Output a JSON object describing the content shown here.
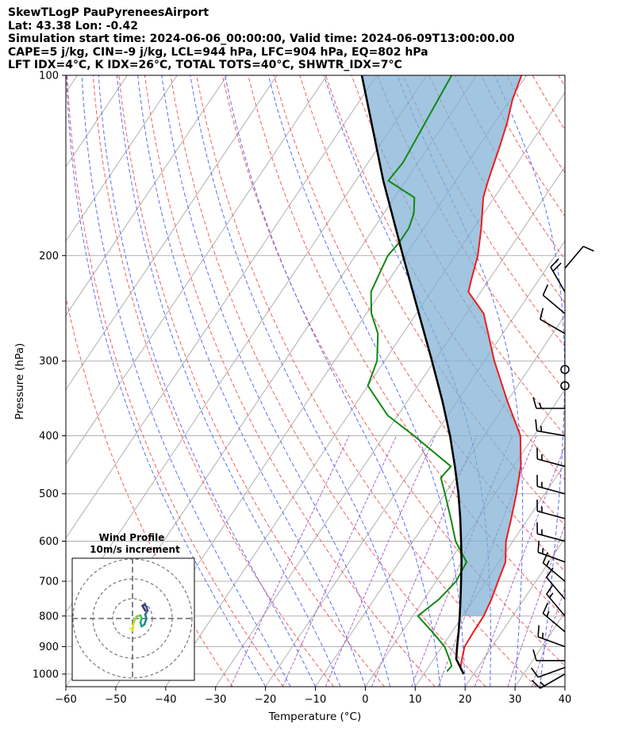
{
  "header": {
    "line1": "SkewTLogP PauPyreneesAirport",
    "line2": "Lat: 43.38   Lon: -0.42",
    "line3": "Simulation start time: 2024-06-06_00:00:00, Valid time: 2024-06-09T13:00:00.00",
    "line4": "CAPE=5 j/kg, CIN=-9 j/kg, LCL=944 hPa, LFC=904 hPa, EQ=802 hPa",
    "line5": "LFT IDX=4°C, K IDX=26°C, TOTAL TOTS=40°C, SHWTR_IDX=7°C"
  },
  "chart_data": {
    "type": "skewt",
    "xlabel": "Temperature (°C)",
    "ylabel": "Pressure (hPa)",
    "xlim": [
      -60,
      40
    ],
    "ylim": [
      1050,
      100
    ],
    "x_ticks": [
      "−60",
      "−50",
      "−40",
      "−30",
      "−20",
      "−10",
      "0",
      "10",
      "20",
      "30",
      "40"
    ],
    "y_ticks": [
      "100",
      "200",
      "300",
      "400",
      "500",
      "600",
      "700",
      "800",
      "900",
      "1000"
    ],
    "temperature_profile": [
      [
        1000,
        18.0
      ],
      [
        975,
        16.5
      ],
      [
        950,
        15.8
      ],
      [
        900,
        14.5
      ],
      [
        850,
        14.3
      ],
      [
        800,
        14.2
      ],
      [
        750,
        13.5
      ],
      [
        700,
        12.4
      ],
      [
        650,
        11.3
      ],
      [
        600,
        8.6
      ],
      [
        550,
        6.6
      ],
      [
        500,
        4.3
      ],
      [
        450,
        1.5
      ],
      [
        400,
        -2.7
      ],
      [
        350,
        -10.0
      ],
      [
        300,
        -18.0
      ],
      [
        250,
        -26.5
      ],
      [
        230,
        -32.5
      ],
      [
        220,
        -33.5
      ],
      [
        200,
        -35.5
      ],
      [
        180,
        -38.5
      ],
      [
        160,
        -42.2
      ],
      [
        150,
        -43.5
      ],
      [
        130,
        -46.0
      ],
      [
        120,
        -47.5
      ],
      [
        110,
        -49.5
      ],
      [
        100,
        -51.0
      ]
    ],
    "dewpoint_profile": [
      [
        990,
        14.3
      ],
      [
        970,
        14.5
      ],
      [
        950,
        13.5
      ],
      [
        925,
        12.0
      ],
      [
        900,
        10.5
      ],
      [
        850,
        6.0
      ],
      [
        800,
        1.0
      ],
      [
        750,
        3.0
      ],
      [
        700,
        4.0
      ],
      [
        650,
        3.5
      ],
      [
        600,
        -1.5
      ],
      [
        550,
        -5.5
      ],
      [
        500,
        -10.0
      ],
      [
        470,
        -13.0
      ],
      [
        450,
        -12.5
      ],
      [
        400,
        -24.0
      ],
      [
        370,
        -32.0
      ],
      [
        330,
        -40.0
      ],
      [
        300,
        -41.5
      ],
      [
        270,
        -45.0
      ],
      [
        250,
        -49.0
      ],
      [
        230,
        -52.0
      ],
      [
        210,
        -53.0
      ],
      [
        200,
        -53.5
      ],
      [
        190,
        -53.0
      ],
      [
        180,
        -53.0
      ],
      [
        170,
        -54.0
      ],
      [
        160,
        -56.0
      ],
      [
        150,
        -63.5
      ],
      [
        140,
        -63.0
      ],
      [
        100,
        -65.0
      ]
    ],
    "parcel_profile": [
      [
        1000,
        18.0
      ],
      [
        944,
        14.5
      ],
      [
        900,
        13.0
      ],
      [
        850,
        11.3
      ],
      [
        800,
        9.4
      ],
      [
        750,
        7.3
      ],
      [
        700,
        5.0
      ],
      [
        650,
        2.5
      ],
      [
        600,
        -0.4
      ],
      [
        550,
        -3.6
      ],
      [
        500,
        -7.3
      ],
      [
        450,
        -11.7
      ],
      [
        400,
        -16.8
      ],
      [
        350,
        -23.0
      ],
      [
        300,
        -30.5
      ],
      [
        250,
        -39.5
      ],
      [
        200,
        -50.5
      ],
      [
        150,
        -64.5
      ],
      [
        100,
        -83.0
      ]
    ],
    "wind_barbs": [
      {
        "p": 1000,
        "speed_kt": 15,
        "dir_deg": 240
      },
      {
        "p": 975,
        "speed_kt": 10,
        "dir_deg": 250
      },
      {
        "p": 950,
        "speed_kt": 10,
        "dir_deg": 270
      },
      {
        "p": 900,
        "speed_kt": 15,
        "dir_deg": 290
      },
      {
        "p": 850,
        "speed_kt": 15,
        "dir_deg": 310
      },
      {
        "p": 800,
        "speed_kt": 15,
        "dir_deg": 320
      },
      {
        "p": 750,
        "speed_kt": 10,
        "dir_deg": 320
      },
      {
        "p": 700,
        "speed_kt": 15,
        "dir_deg": 310
      },
      {
        "p": 650,
        "speed_kt": 15,
        "dir_deg": 290
      },
      {
        "p": 600,
        "speed_kt": 15,
        "dir_deg": 285
      },
      {
        "p": 550,
        "speed_kt": 15,
        "dir_deg": 285
      },
      {
        "p": 500,
        "speed_kt": 15,
        "dir_deg": 285
      },
      {
        "p": 450,
        "speed_kt": 15,
        "dir_deg": 285
      },
      {
        "p": 400,
        "speed_kt": 15,
        "dir_deg": 280
      },
      {
        "p": 360,
        "speed_kt": 15,
        "dir_deg": 270
      },
      {
        "p": 330,
        "speed_kt": 0,
        "dir_deg": 0
      },
      {
        "p": 310,
        "speed_kt": 0,
        "dir_deg": 0
      },
      {
        "p": 270,
        "speed_kt": 10,
        "dir_deg": 300
      },
      {
        "p": 250,
        "speed_kt": 10,
        "dir_deg": 310
      },
      {
        "p": 230,
        "speed_kt": 20,
        "dir_deg": 330
      },
      {
        "p": 210,
        "speed_kt": 10,
        "dir_deg": 40
      }
    ],
    "inset": {
      "title": "Wind Profile",
      "subtitle": "10m/s increment",
      "hodograph_u": [
        -0.5,
        0.0,
        0.3,
        1.0,
        2.0,
        2.3,
        2.0,
        2.3,
        3.0,
        3.5,
        3.2,
        3.8,
        3.5,
        3.0,
        2.5,
        3.2
      ],
      "hodograph_v": [
        -2.5,
        -3.0,
        -1.0,
        0.5,
        0.8,
        0.0,
        -1.0,
        -2.0,
        -1.5,
        0.0,
        1.0,
        2.0,
        3.0,
        3.5,
        3.2,
        2.0
      ]
    }
  }
}
